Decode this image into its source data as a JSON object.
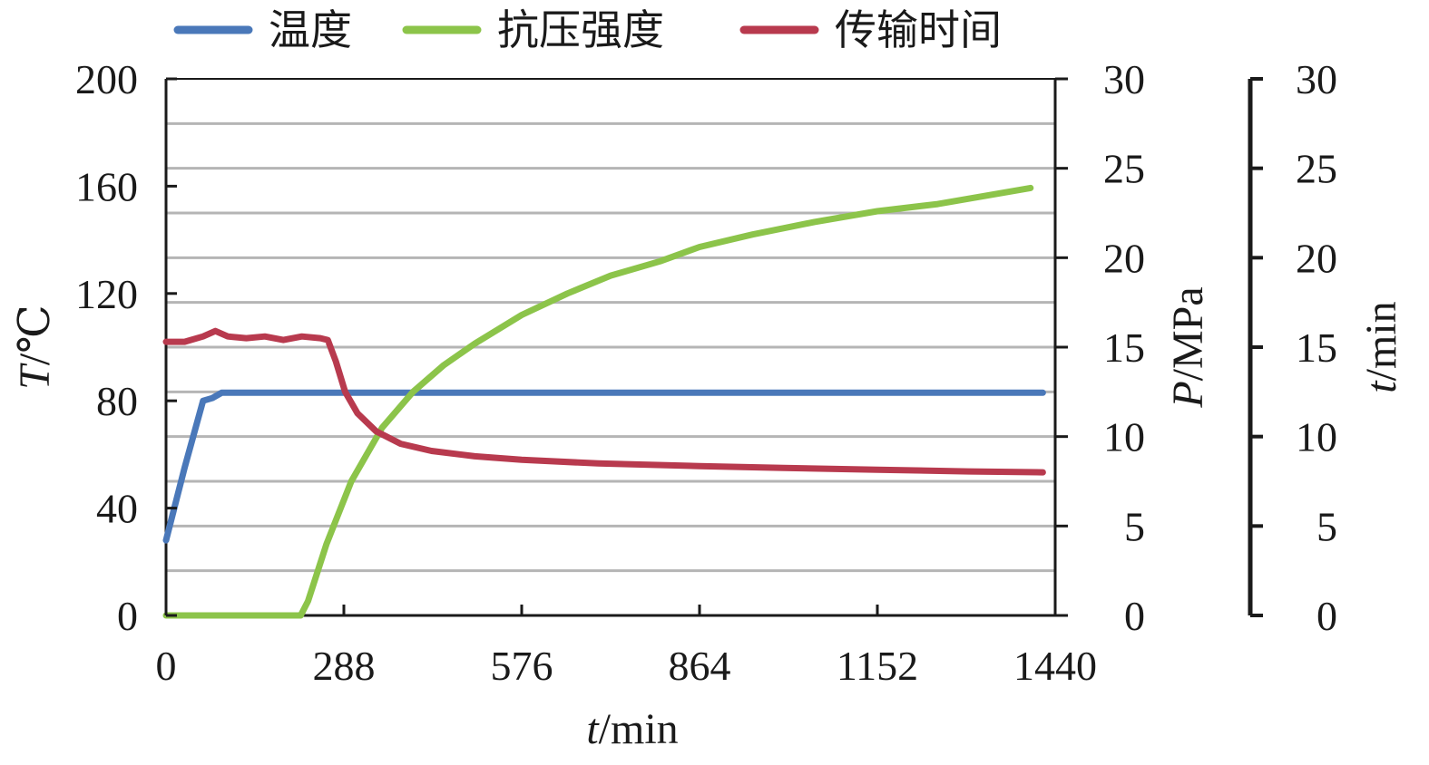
{
  "chart_data": {
    "type": "line",
    "legend": {
      "position": "top",
      "entries": [
        {
          "key": "temp",
          "label": "温度",
          "color": "#4a78b9"
        },
        {
          "key": "strength",
          "label": "抗压强度",
          "color": "#8cc44a"
        },
        {
          "key": "transit",
          "label": "传输时间",
          "color": "#b83a4e"
        }
      ]
    },
    "x_axis": {
      "label_italic": "t",
      "label_rest": "/min",
      "ticks": [
        "0",
        "288",
        "576",
        "864",
        "1152",
        "1440"
      ],
      "range": [
        0,
        1440
      ]
    },
    "y_left": {
      "label_italic": "T",
      "label_rest": "/℃",
      "ticks": [
        "0",
        "40",
        "80",
        "120",
        "160",
        "200"
      ],
      "range": [
        0,
        200
      ]
    },
    "y_right1": {
      "label_italic": "P",
      "label_rest": "/MPa",
      "ticks": [
        "0",
        "5",
        "10",
        "15",
        "20",
        "25",
        "30"
      ],
      "range": [
        0,
        30
      ]
    },
    "y_right2": {
      "label_italic": "t",
      "label_rest": "/min",
      "ticks": [
        "0",
        "5",
        "10",
        "15",
        "20",
        "25",
        "30"
      ],
      "range": [
        0,
        30
      ]
    },
    "grid": true,
    "series": [
      {
        "key": "temp",
        "name": "温度",
        "axis": "y_left",
        "color": "#4a78b9",
        "x": [
          0,
          30,
          60,
          75,
          90,
          120,
          288,
          576,
          864,
          1152,
          1420
        ],
        "y": [
          28,
          55,
          80,
          81,
          83,
          83,
          83,
          83,
          83,
          83,
          83
        ]
      },
      {
        "key": "strength",
        "name": "抗压强度",
        "axis": "y_right1",
        "color": "#8cc44a",
        "x": [
          0,
          150,
          218,
          230,
          260,
          300,
          350,
          400,
          450,
          500,
          576,
          650,
          720,
          800,
          864,
          950,
          1050,
          1152,
          1250,
          1350,
          1400
        ],
        "y": [
          0,
          0,
          0,
          0.8,
          4,
          7.5,
          10.5,
          12.5,
          14,
          15.2,
          16.8,
          18,
          19,
          19.8,
          20.6,
          21.3,
          22,
          22.6,
          23,
          23.6,
          23.9
        ]
      },
      {
        "key": "transit",
        "name": "传输时间",
        "axis": "y_right2",
        "color": "#b83a4e",
        "x": [
          0,
          30,
          60,
          80,
          100,
          130,
          160,
          190,
          220,
          250,
          262,
          275,
          290,
          310,
          340,
          380,
          430,
          500,
          576,
          700,
          864,
          1000,
          1152,
          1300,
          1420
        ],
        "y": [
          15.3,
          15.3,
          15.6,
          15.9,
          15.6,
          15.5,
          15.6,
          15.4,
          15.6,
          15.5,
          15.4,
          14.2,
          12.5,
          11.3,
          10.3,
          9.6,
          9.2,
          8.9,
          8.7,
          8.5,
          8.35,
          8.25,
          8.15,
          8.05,
          8.0
        ]
      }
    ]
  }
}
